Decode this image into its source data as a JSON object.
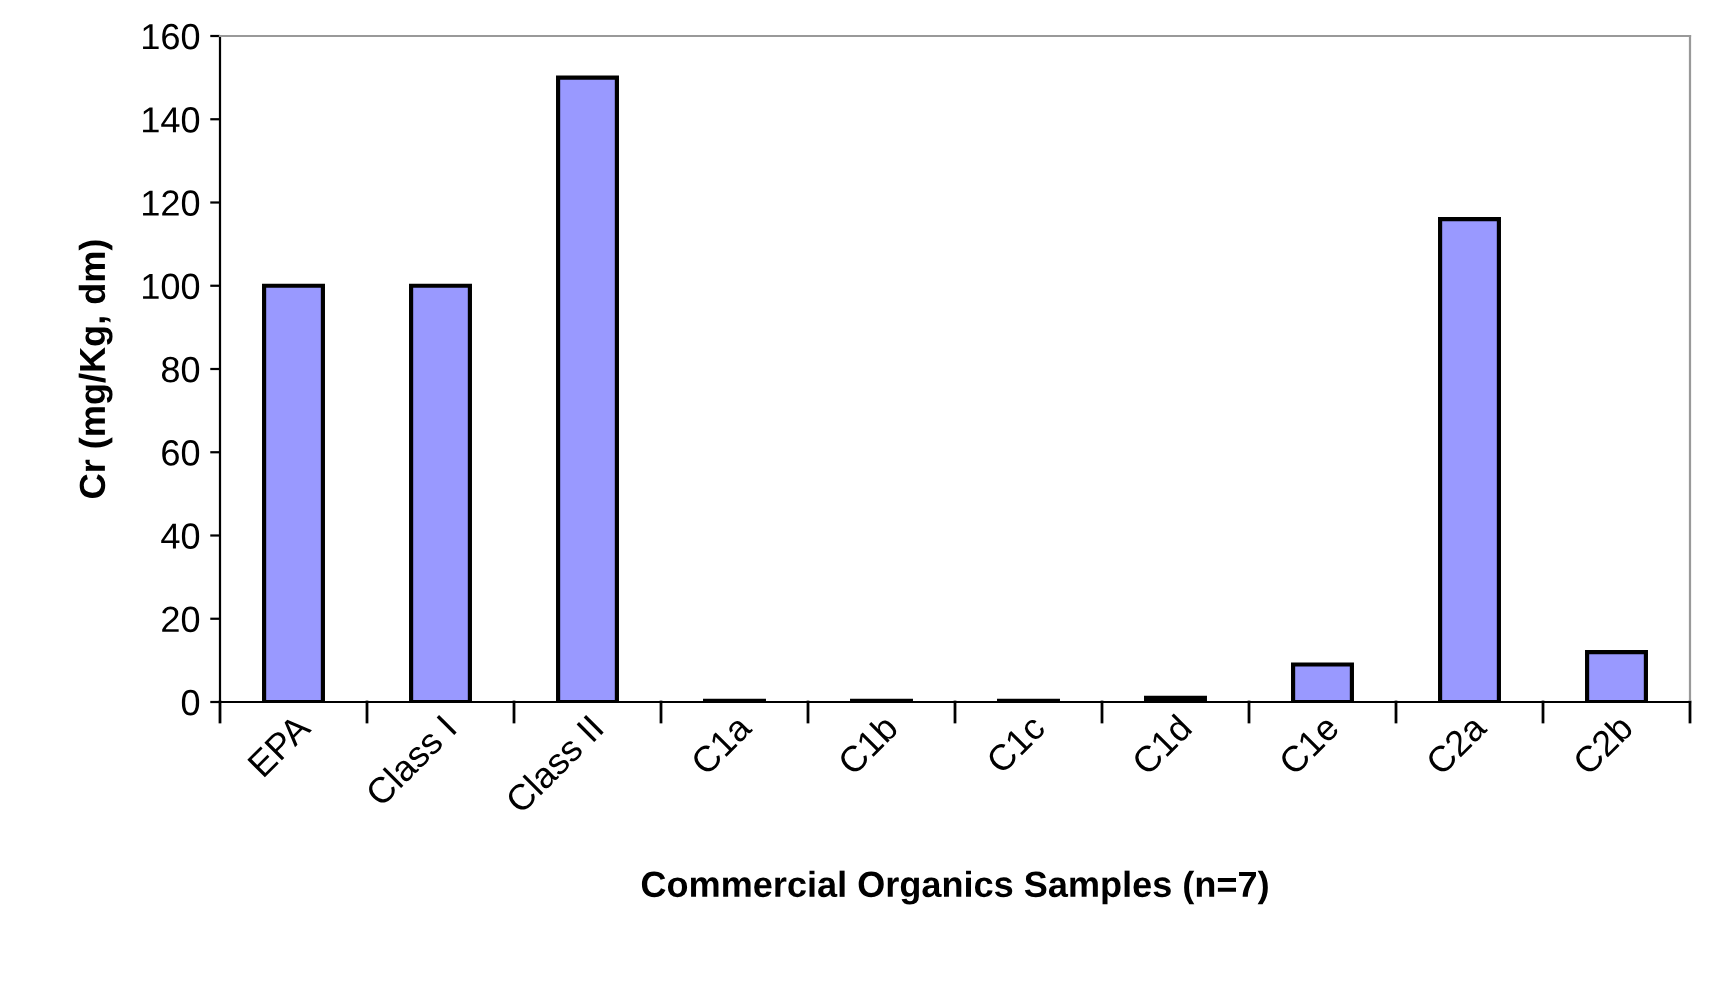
{
  "chart_data": {
    "type": "bar",
    "xlabel": "Commercial Organics Samples (n=7)",
    "ylabel": "Cr (mg/Kg, dm)",
    "categories": [
      "EPA",
      "Class I",
      "Class II",
      "C1a",
      "C1b",
      "C1c",
      "C1d",
      "C1e",
      "C2a",
      "C2b"
    ],
    "values": [
      100,
      100,
      150,
      0.3,
      0.3,
      0.3,
      1,
      9,
      116,
      12
    ],
    "color": "#9999ff",
    "ylim": [
      0,
      160
    ],
    "yticks": [
      0,
      20,
      40,
      60,
      80,
      100,
      120,
      140,
      160
    ],
    "grid": false,
    "legend": false
  }
}
